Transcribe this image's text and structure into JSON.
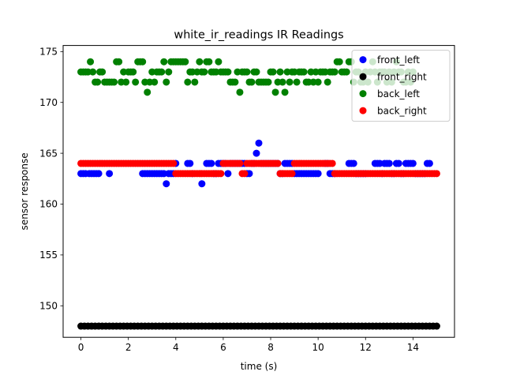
{
  "chart_data": {
    "type": "scatter",
    "title": "white_ir_readings IR Readings",
    "xlabel": "time (s)",
    "ylabel": "sensor response",
    "xlim": [
      -0.75,
      15.75
    ],
    "ylim": [
      146.9,
      175.6
    ],
    "xticks": [
      0,
      2,
      4,
      6,
      8,
      10,
      12,
      14
    ],
    "yticks": [
      150,
      155,
      160,
      165,
      170,
      175
    ],
    "grid": false,
    "legend_position": "top-right",
    "series": [
      {
        "name": "front_left",
        "color": "#0000ff",
        "x": [
          0.0,
          0.1,
          0.2,
          0.35,
          0.45,
          0.55,
          0.65,
          0.75,
          1.2,
          2.6,
          2.7,
          2.8,
          2.9,
          3.0,
          3.1,
          3.2,
          3.3,
          3.4,
          3.5,
          3.6,
          3.7,
          3.8,
          3.9,
          4.0,
          4.5,
          4.6,
          4.7,
          5.1,
          5.3,
          5.4,
          5.5,
          5.6,
          5.7,
          5.8,
          5.9,
          6.0,
          6.1,
          6.2,
          6.3,
          6.4,
          6.5,
          6.6,
          6.7,
          6.8,
          6.9,
          7.0,
          7.1,
          7.2,
          7.3,
          7.4,
          7.5,
          7.6,
          7.7,
          7.8,
          7.9,
          8.0,
          8.1,
          8.2,
          8.3,
          8.4,
          8.5,
          8.6,
          8.7,
          8.8,
          8.9,
          9.0,
          9.1,
          9.2,
          9.3,
          9.4,
          9.5,
          9.6,
          9.7,
          9.8,
          9.9,
          10.0,
          10.3,
          10.4,
          10.5,
          10.6,
          10.7,
          11.3,
          11.4,
          11.5,
          11.6,
          11.7,
          11.8,
          11.9,
          12.0,
          12.4,
          12.5,
          12.6,
          12.7,
          12.8,
          12.9,
          13.0,
          13.1,
          13.2,
          13.3,
          13.4,
          13.5,
          13.6,
          13.7,
          13.8,
          13.9,
          14.0,
          14.1,
          14.2,
          14.3,
          14.4,
          14.5,
          14.6,
          14.7
        ],
        "y": [
          163,
          163,
          163,
          163,
          163,
          163,
          163,
          163,
          163,
          163,
          163,
          163,
          163,
          163,
          163,
          163,
          163,
          163,
          163,
          162,
          163,
          163,
          163,
          164,
          164,
          164,
          163,
          162,
          164,
          164,
          164,
          163,
          163,
          164,
          164,
          164,
          164,
          163,
          164,
          164,
          164,
          164,
          164,
          164,
          164,
          163,
          163,
          164,
          164,
          165,
          166,
          164,
          164,
          164,
          164,
          164,
          164,
          164,
          164,
          163,
          163,
          164,
          164,
          164,
          164,
          163,
          163,
          163,
          163,
          163,
          163,
          163,
          163,
          163,
          163,
          163,
          164,
          164,
          163,
          163,
          163,
          164,
          164,
          164,
          163,
          163,
          163,
          163,
          163,
          164,
          164,
          164,
          163,
          164,
          164,
          164,
          163,
          163,
          164,
          164,
          163,
          163,
          164,
          164,
          164,
          164,
          163,
          163,
          163,
          163,
          163,
          164,
          164
        ],
        "note_shape": "circle"
      },
      {
        "name": "front_right",
        "color": "#000000",
        "x": [
          0.0,
          0.15,
          0.3,
          0.45,
          0.6,
          0.75,
          0.9,
          1.05,
          1.2,
          1.35,
          1.5,
          1.65,
          1.8,
          1.95,
          2.1,
          2.25,
          2.4,
          2.55,
          2.7,
          2.85,
          3.0,
          3.15,
          3.3,
          3.45,
          3.6,
          3.75,
          3.9,
          4.05,
          4.2,
          4.35,
          4.5,
          4.65,
          4.8,
          4.95,
          5.1,
          5.25,
          5.4,
          5.55,
          5.7,
          5.85,
          6.0,
          6.15,
          6.3,
          6.45,
          6.6,
          6.75,
          6.9,
          7.05,
          7.2,
          7.35,
          7.5,
          7.65,
          7.8,
          7.95,
          8.1,
          8.25,
          8.4,
          8.55,
          8.7,
          8.85,
          9.0,
          9.15,
          9.3,
          9.45,
          9.6,
          9.75,
          9.9,
          10.05,
          10.2,
          10.35,
          10.5,
          10.65,
          10.8,
          10.95,
          11.1,
          11.25,
          11.4,
          11.55,
          11.7,
          11.85,
          12.0,
          12.15,
          12.3,
          12.45,
          12.6,
          12.75,
          12.9,
          13.05,
          13.2,
          13.35,
          13.5,
          13.65,
          13.8,
          13.95,
          14.1,
          14.25,
          14.4,
          14.55,
          14.7,
          14.85,
          15.0
        ],
        "y": [
          148,
          148,
          148,
          148,
          148,
          148,
          148,
          148,
          148,
          148,
          148,
          148,
          148,
          148,
          148,
          148,
          148,
          148,
          148,
          148,
          148,
          148,
          148,
          148,
          148,
          148,
          148,
          148,
          148,
          148,
          148,
          148,
          148,
          148,
          148,
          148,
          148,
          148,
          148,
          148,
          148,
          148,
          148,
          148,
          148,
          148,
          148,
          148,
          148,
          148,
          148,
          148,
          148,
          148,
          148,
          148,
          148,
          148,
          148,
          148,
          148,
          148,
          148,
          148,
          148,
          148,
          148,
          148,
          148,
          148,
          148,
          148,
          148,
          148,
          148,
          148,
          148,
          148,
          148,
          148,
          148,
          148,
          148,
          148,
          148,
          148,
          148,
          148,
          148,
          148,
          148,
          148,
          148,
          148,
          148,
          148,
          148,
          148,
          148,
          148,
          148
        ]
      },
      {
        "name": "back_left",
        "color": "#008000",
        "x": [
          0.0,
          0.1,
          0.2,
          0.3,
          0.4,
          0.5,
          0.6,
          0.7,
          0.8,
          0.9,
          1.0,
          1.1,
          1.2,
          1.3,
          1.4,
          1.5,
          1.6,
          1.7,
          1.8,
          1.9,
          2.0,
          2.1,
          2.2,
          2.3,
          2.4,
          2.5,
          2.6,
          2.7,
          2.8,
          2.9,
          3.0,
          3.1,
          3.2,
          3.3,
          3.4,
          3.5,
          3.6,
          3.7,
          3.8,
          3.9,
          4.0,
          4.1,
          4.2,
          4.3,
          4.4,
          4.5,
          4.6,
          4.7,
          4.8,
          4.9,
          5.0,
          5.1,
          5.2,
          5.3,
          5.4,
          5.5,
          5.6,
          5.7,
          5.8,
          5.9,
          6.0,
          6.1,
          6.2,
          6.3,
          6.4,
          6.5,
          6.6,
          6.7,
          6.8,
          6.9,
          7.0,
          7.1,
          7.2,
          7.3,
          7.4,
          7.5,
          7.6,
          7.7,
          7.8,
          7.9,
          8.0,
          8.1,
          8.2,
          8.3,
          8.4,
          8.5,
          8.6,
          8.7,
          8.8,
          8.9,
          9.0,
          9.1,
          9.2,
          9.3,
          9.4,
          9.5,
          9.6,
          9.7,
          9.8,
          9.9,
          10.0,
          10.1,
          10.2,
          10.3,
          10.4,
          10.5,
          10.6,
          10.7,
          10.8,
          10.9,
          11.0,
          11.1,
          11.2,
          11.3,
          11.4,
          11.5,
          11.6,
          11.7,
          11.8,
          11.9,
          12.0,
          12.1,
          12.2,
          12.3,
          12.4,
          12.5,
          12.6,
          12.7,
          12.8,
          12.9,
          13.0,
          13.1,
          13.2,
          13.3,
          13.4,
          13.5,
          13.6,
          13.7,
          13.8,
          13.9,
          14.0
        ],
        "y": [
          173,
          173,
          173,
          173,
          174,
          173,
          172,
          172,
          173,
          173,
          172,
          172,
          172,
          172,
          172,
          174,
          174,
          172,
          173,
          172,
          173,
          173,
          173,
          172,
          174,
          174,
          174,
          172,
          171,
          172,
          173,
          172,
          173,
          173,
          173,
          174,
          172,
          173,
          174,
          174,
          174,
          174,
          174,
          174,
          174,
          172,
          173,
          173,
          172,
          173,
          174,
          173,
          173,
          174,
          174,
          173,
          173,
          173,
          174,
          173,
          173,
          173,
          173,
          172,
          172,
          172,
          173,
          171,
          173,
          173,
          173,
          172,
          172,
          173,
          173,
          172,
          172,
          172,
          172,
          172,
          173,
          173,
          171,
          172,
          173,
          172,
          171,
          173,
          172,
          173,
          173,
          172,
          173,
          173,
          173,
          172,
          172,
          173,
          172,
          173,
          172,
          173,
          173,
          173,
          172,
          173,
          173,
          173,
          174,
          174,
          173,
          173,
          173,
          174,
          174,
          172,
          173,
          173,
          172,
          172,
          173,
          172,
          173,
          174,
          173,
          172,
          173,
          173,
          173,
          172,
          173,
          172,
          173,
          174,
          173,
          173,
          172,
          172,
          173,
          172,
          173
        ]
      },
      {
        "name": "back_right",
        "color": "#ff0000",
        "x": [
          0.0,
          0.1,
          0.2,
          0.3,
          0.4,
          0.5,
          0.6,
          0.7,
          0.8,
          0.9,
          1.0,
          1.1,
          1.2,
          1.3,
          1.4,
          1.5,
          1.6,
          1.7,
          1.8,
          1.9,
          2.0,
          2.1,
          2.2,
          2.3,
          2.4,
          2.5,
          2.6,
          2.7,
          2.8,
          2.9,
          3.0,
          3.1,
          3.2,
          3.3,
          3.4,
          3.5,
          3.6,
          3.7,
          3.8,
          3.9,
          4.0,
          4.1,
          4.2,
          4.3,
          4.4,
          4.5,
          4.6,
          4.7,
          4.8,
          4.9,
          5.0,
          5.1,
          5.2,
          5.3,
          5.4,
          5.5,
          5.6,
          5.7,
          5.8,
          5.9,
          6.0,
          6.1,
          6.2,
          6.3,
          6.4,
          6.5,
          6.6,
          6.7,
          6.8,
          6.9,
          7.0,
          7.1,
          7.2,
          7.3,
          7.4,
          7.5,
          7.6,
          7.7,
          7.8,
          7.9,
          8.0,
          8.1,
          8.2,
          8.3,
          8.4,
          8.5,
          8.6,
          8.7,
          8.8,
          8.9,
          9.0,
          9.1,
          9.2,
          9.3,
          9.4,
          9.5,
          9.6,
          9.7,
          9.8,
          9.9,
          10.0,
          10.1,
          10.2,
          10.3,
          10.4,
          10.5,
          10.6,
          10.7,
          10.8,
          10.9,
          11.0,
          11.1,
          11.2,
          11.3,
          11.4,
          11.5,
          11.6,
          11.7,
          11.8,
          11.9,
          12.0,
          12.1,
          12.2,
          12.3,
          12.4,
          12.5,
          12.6,
          12.7,
          12.8,
          12.9,
          13.0,
          13.1,
          13.2,
          13.3,
          13.4,
          13.5,
          13.6,
          13.7,
          13.8,
          13.9,
          14.0,
          14.1,
          14.2,
          14.3,
          14.4,
          14.5,
          14.6,
          14.7,
          14.8,
          14.9,
          15.0
        ],
        "y": [
          164,
          164,
          164,
          164,
          164,
          164,
          164,
          164,
          164,
          164,
          164,
          164,
          164,
          164,
          164,
          164,
          164,
          164,
          164,
          164,
          164,
          164,
          164,
          164,
          164,
          164,
          164,
          164,
          164,
          164,
          164,
          164,
          164,
          164,
          164,
          164,
          164,
          164,
          164,
          164,
          163,
          163,
          163,
          163,
          163,
          163,
          163,
          163,
          163,
          163,
          163,
          163,
          163,
          163,
          163,
          163,
          163,
          163,
          163,
          163,
          164,
          164,
          164,
          164,
          164,
          164,
          164,
          164,
          163,
          163,
          164,
          164,
          164,
          164,
          164,
          164,
          164,
          164,
          164,
          164,
          164,
          164,
          164,
          164,
          163,
          163,
          163,
          163,
          163,
          163,
          164,
          164,
          164,
          164,
          164,
          164,
          164,
          164,
          164,
          164,
          164,
          164,
          164,
          164,
          164,
          164,
          164,
          163,
          163,
          163,
          163,
          163,
          163,
          163,
          163,
          163,
          163,
          163,
          163,
          163,
          163,
          163,
          163,
          163,
          163,
          163,
          163,
          163,
          163,
          163,
          163,
          163,
          163,
          163,
          163,
          163,
          163,
          163,
          163,
          163,
          163,
          163,
          163,
          163,
          163,
          163,
          163,
          163,
          163,
          163,
          163
        ]
      }
    ]
  }
}
